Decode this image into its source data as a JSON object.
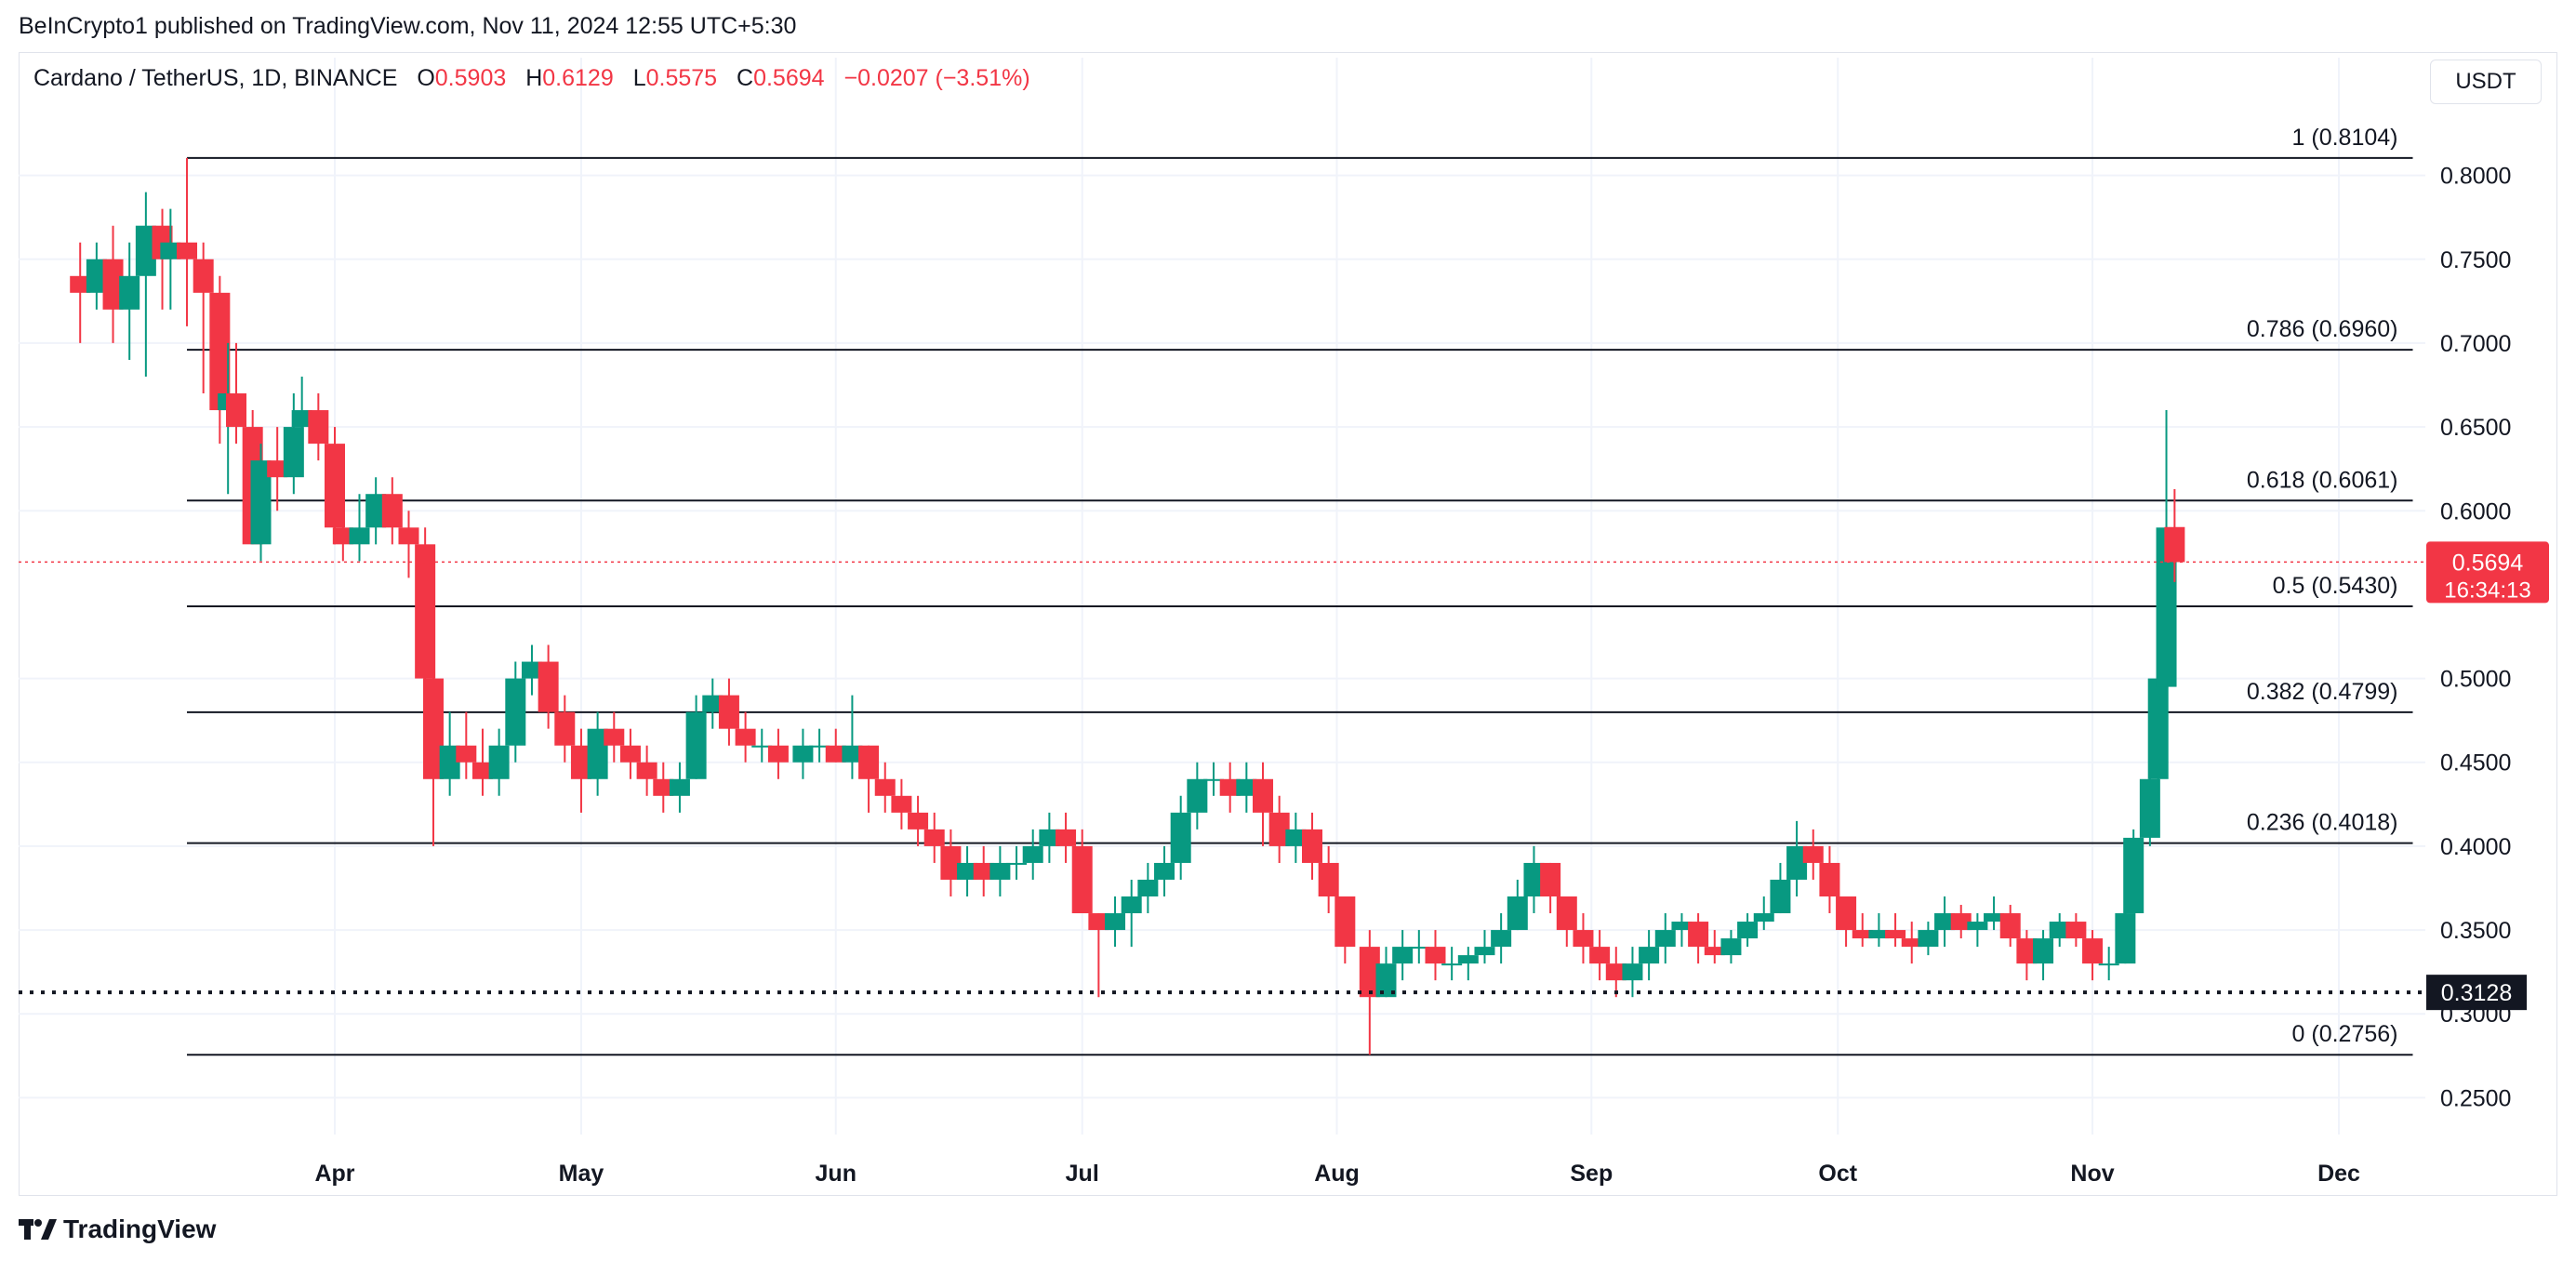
{
  "header": {
    "published": "BeInCrypto1 published on TradingView.com, Nov 11, 2024 12:55 UTC+5:30"
  },
  "legend": {
    "symbol": "Cardano / TetherUS, 1D, BINANCE",
    "open_label": "O",
    "open": "0.5903",
    "high_label": "H",
    "high": "0.6129",
    "low_label": "L",
    "low": "0.5575",
    "close_label": "C",
    "close": "0.5694",
    "change": "−0.0207 (−3.51%)"
  },
  "currency_button": "USDT",
  "footer": {
    "brand": "TradingView"
  },
  "colors": {
    "up": "#089981",
    "down": "#f23645",
    "grid": "#f0f3fa",
    "fib": "#131722"
  },
  "chart_data": {
    "type": "candlestick",
    "title": "Cardano / TetherUS, 1D, BINANCE",
    "ylim": [
      0.2,
      0.84
    ],
    "grid": true,
    "yticks": [
      "0.8000",
      "0.7500",
      "0.7000",
      "0.6500",
      "0.6000",
      "0.5000",
      "0.4500",
      "0.4000",
      "0.3500",
      "0.3000",
      "0.2500"
    ],
    "xticks": [
      "Apr",
      "May",
      "Jun",
      "Jul",
      "Aug",
      "Sep",
      "Oct",
      "Nov",
      "Dec"
    ],
    "xtick_dates": [
      "2024-04-01",
      "2024-05-01",
      "2024-06-01",
      "2024-07-01",
      "2024-08-01",
      "2024-09-01",
      "2024-10-01",
      "2024-11-01",
      "2024-12-01"
    ],
    "x_range": [
      "2024-02-28",
      "2024-12-12"
    ],
    "fib_start": "2024-03-14",
    "fib_end": "2024-12-10",
    "fib_levels": [
      {
        "label": "1 (0.8104)",
        "value": 0.8104
      },
      {
        "label": "0.786 (0.6960)",
        "value": 0.696
      },
      {
        "label": "0.618 (0.6061)",
        "value": 0.6061
      },
      {
        "label": "0.5 (0.5430)",
        "value": 0.543
      },
      {
        "label": "0.382 (0.4799)",
        "value": 0.4799
      },
      {
        "label": "0.236 (0.4018)",
        "value": 0.4018
      },
      {
        "label": "0 (0.2756)",
        "value": 0.2756
      }
    ],
    "support": {
      "value": 0.3128,
      "label": "0.3128"
    },
    "last_price": {
      "value": 0.5694,
      "label": "0.5694",
      "countdown": "16:34:13"
    },
    "series": [
      {
        "date": "2024-03-01",
        "o": 0.74,
        "h": 0.76,
        "l": 0.7,
        "c": 0.73
      },
      {
        "date": "2024-03-03",
        "o": 0.73,
        "h": 0.76,
        "l": 0.72,
        "c": 0.75
      },
      {
        "date": "2024-03-05",
        "o": 0.75,
        "h": 0.77,
        "l": 0.7,
        "c": 0.72
      },
      {
        "date": "2024-03-07",
        "o": 0.72,
        "h": 0.76,
        "l": 0.69,
        "c": 0.74
      },
      {
        "date": "2024-03-09",
        "o": 0.74,
        "h": 0.79,
        "l": 0.68,
        "c": 0.77
      },
      {
        "date": "2024-03-11",
        "o": 0.77,
        "h": 0.78,
        "l": 0.72,
        "c": 0.75
      },
      {
        "date": "2024-03-12",
        "o": 0.75,
        "h": 0.78,
        "l": 0.72,
        "c": 0.76
      },
      {
        "date": "2024-03-14",
        "o": 0.76,
        "h": 0.8104,
        "l": 0.71,
        "c": 0.75
      },
      {
        "date": "2024-03-16",
        "o": 0.75,
        "h": 0.76,
        "l": 0.67,
        "c": 0.73
      },
      {
        "date": "2024-03-18",
        "o": 0.73,
        "h": 0.74,
        "l": 0.64,
        "c": 0.66
      },
      {
        "date": "2024-03-19",
        "o": 0.66,
        "h": 0.7,
        "l": 0.61,
        "c": 0.67
      },
      {
        "date": "2024-03-20",
        "o": 0.67,
        "h": 0.7,
        "l": 0.64,
        "c": 0.65
      },
      {
        "date": "2024-03-22",
        "o": 0.65,
        "h": 0.66,
        "l": 0.58,
        "c": 0.58
      },
      {
        "date": "2024-03-23",
        "o": 0.58,
        "h": 0.64,
        "l": 0.57,
        "c": 0.63
      },
      {
        "date": "2024-03-25",
        "o": 0.63,
        "h": 0.65,
        "l": 0.6,
        "c": 0.62
      },
      {
        "date": "2024-03-27",
        "o": 0.62,
        "h": 0.67,
        "l": 0.61,
        "c": 0.65
      },
      {
        "date": "2024-03-28",
        "o": 0.65,
        "h": 0.68,
        "l": 0.63,
        "c": 0.66
      },
      {
        "date": "2024-03-30",
        "o": 0.66,
        "h": 0.67,
        "l": 0.63,
        "c": 0.64
      },
      {
        "date": "2024-04-01",
        "o": 0.64,
        "h": 0.65,
        "l": 0.58,
        "c": 0.59
      },
      {
        "date": "2024-04-02",
        "o": 0.59,
        "h": 0.6,
        "l": 0.57,
        "c": 0.58
      },
      {
        "date": "2024-04-04",
        "o": 0.58,
        "h": 0.61,
        "l": 0.57,
        "c": 0.59
      },
      {
        "date": "2024-04-06",
        "o": 0.59,
        "h": 0.62,
        "l": 0.58,
        "c": 0.61
      },
      {
        "date": "2024-04-08",
        "o": 0.61,
        "h": 0.62,
        "l": 0.58,
        "c": 0.59
      },
      {
        "date": "2024-04-10",
        "o": 0.59,
        "h": 0.6,
        "l": 0.56,
        "c": 0.58
      },
      {
        "date": "2024-04-12",
        "o": 0.58,
        "h": 0.59,
        "l": 0.45,
        "c": 0.5
      },
      {
        "date": "2024-04-13",
        "o": 0.5,
        "h": 0.51,
        "l": 0.4,
        "c": 0.44
      },
      {
        "date": "2024-04-15",
        "o": 0.44,
        "h": 0.48,
        "l": 0.43,
        "c": 0.46
      },
      {
        "date": "2024-04-17",
        "o": 0.46,
        "h": 0.48,
        "l": 0.44,
        "c": 0.45
      },
      {
        "date": "2024-04-19",
        "o": 0.45,
        "h": 0.47,
        "l": 0.43,
        "c": 0.44
      },
      {
        "date": "2024-04-21",
        "o": 0.44,
        "h": 0.47,
        "l": 0.43,
        "c": 0.46
      },
      {
        "date": "2024-04-23",
        "o": 0.46,
        "h": 0.51,
        "l": 0.45,
        "c": 0.5
      },
      {
        "date": "2024-04-25",
        "o": 0.5,
        "h": 0.52,
        "l": 0.49,
        "c": 0.51
      },
      {
        "date": "2024-04-27",
        "o": 0.51,
        "h": 0.52,
        "l": 0.47,
        "c": 0.48
      },
      {
        "date": "2024-04-29",
        "o": 0.48,
        "h": 0.49,
        "l": 0.45,
        "c": 0.46
      },
      {
        "date": "2024-05-01",
        "o": 0.46,
        "h": 0.47,
        "l": 0.42,
        "c": 0.44
      },
      {
        "date": "2024-05-03",
        "o": 0.44,
        "h": 0.48,
        "l": 0.43,
        "c": 0.47
      },
      {
        "date": "2024-05-05",
        "o": 0.47,
        "h": 0.48,
        "l": 0.45,
        "c": 0.46
      },
      {
        "date": "2024-05-07",
        "o": 0.46,
        "h": 0.47,
        "l": 0.44,
        "c": 0.45
      },
      {
        "date": "2024-05-09",
        "o": 0.45,
        "h": 0.46,
        "l": 0.43,
        "c": 0.44
      },
      {
        "date": "2024-05-11",
        "o": 0.44,
        "h": 0.45,
        "l": 0.42,
        "c": 0.43
      },
      {
        "date": "2024-05-13",
        "o": 0.43,
        "h": 0.45,
        "l": 0.42,
        "c": 0.44
      },
      {
        "date": "2024-05-15",
        "o": 0.44,
        "h": 0.49,
        "l": 0.44,
        "c": 0.48
      },
      {
        "date": "2024-05-17",
        "o": 0.48,
        "h": 0.5,
        "l": 0.47,
        "c": 0.49
      },
      {
        "date": "2024-05-19",
        "o": 0.49,
        "h": 0.5,
        "l": 0.46,
        "c": 0.47
      },
      {
        "date": "2024-05-21",
        "o": 0.47,
        "h": 0.48,
        "l": 0.45,
        "c": 0.46
      },
      {
        "date": "2024-05-23",
        "o": 0.46,
        "h": 0.47,
        "l": 0.45,
        "c": 0.46
      },
      {
        "date": "2024-05-25",
        "o": 0.46,
        "h": 0.47,
        "l": 0.44,
        "c": 0.45
      },
      {
        "date": "2024-05-28",
        "o": 0.45,
        "h": 0.47,
        "l": 0.44,
        "c": 0.46
      },
      {
        "date": "2024-05-30",
        "o": 0.46,
        "h": 0.47,
        "l": 0.45,
        "c": 0.46
      },
      {
        "date": "2024-06-01",
        "o": 0.46,
        "h": 0.47,
        "l": 0.45,
        "c": 0.45
      },
      {
        "date": "2024-06-03",
        "o": 0.45,
        "h": 0.49,
        "l": 0.44,
        "c": 0.46
      },
      {
        "date": "2024-06-05",
        "o": 0.46,
        "h": 0.46,
        "l": 0.42,
        "c": 0.44
      },
      {
        "date": "2024-06-07",
        "o": 0.44,
        "h": 0.45,
        "l": 0.42,
        "c": 0.43
      },
      {
        "date": "2024-06-09",
        "o": 0.43,
        "h": 0.44,
        "l": 0.41,
        "c": 0.42
      },
      {
        "date": "2024-06-11",
        "o": 0.42,
        "h": 0.43,
        "l": 0.4,
        "c": 0.41
      },
      {
        "date": "2024-06-13",
        "o": 0.41,
        "h": 0.42,
        "l": 0.39,
        "c": 0.4
      },
      {
        "date": "2024-06-15",
        "o": 0.4,
        "h": 0.41,
        "l": 0.37,
        "c": 0.38
      },
      {
        "date": "2024-06-17",
        "o": 0.38,
        "h": 0.4,
        "l": 0.37,
        "c": 0.39
      },
      {
        "date": "2024-06-19",
        "o": 0.39,
        "h": 0.4,
        "l": 0.37,
        "c": 0.38
      },
      {
        "date": "2024-06-21",
        "o": 0.38,
        "h": 0.4,
        "l": 0.37,
        "c": 0.39
      },
      {
        "date": "2024-06-23",
        "o": 0.39,
        "h": 0.4,
        "l": 0.38,
        "c": 0.39
      },
      {
        "date": "2024-06-25",
        "o": 0.39,
        "h": 0.41,
        "l": 0.38,
        "c": 0.4
      },
      {
        "date": "2024-06-27",
        "o": 0.4,
        "h": 0.42,
        "l": 0.39,
        "c": 0.41
      },
      {
        "date": "2024-06-29",
        "o": 0.41,
        "h": 0.42,
        "l": 0.39,
        "c": 0.4
      },
      {
        "date": "2024-07-01",
        "o": 0.4,
        "h": 0.41,
        "l": 0.36,
        "c": 0.36
      },
      {
        "date": "2024-07-03",
        "o": 0.36,
        "h": 0.36,
        "l": 0.31,
        "c": 0.35
      },
      {
        "date": "2024-07-05",
        "o": 0.35,
        "h": 0.37,
        "l": 0.34,
        "c": 0.36
      },
      {
        "date": "2024-07-07",
        "o": 0.36,
        "h": 0.38,
        "l": 0.34,
        "c": 0.37
      },
      {
        "date": "2024-07-09",
        "o": 0.37,
        "h": 0.39,
        "l": 0.36,
        "c": 0.38
      },
      {
        "date": "2024-07-11",
        "o": 0.38,
        "h": 0.4,
        "l": 0.37,
        "c": 0.39
      },
      {
        "date": "2024-07-13",
        "o": 0.39,
        "h": 0.43,
        "l": 0.38,
        "c": 0.42
      },
      {
        "date": "2024-07-15",
        "o": 0.42,
        "h": 0.45,
        "l": 0.41,
        "c": 0.44
      },
      {
        "date": "2024-07-17",
        "o": 0.44,
        "h": 0.45,
        "l": 0.43,
        "c": 0.44
      },
      {
        "date": "2024-07-19",
        "o": 0.44,
        "h": 0.45,
        "l": 0.42,
        "c": 0.43
      },
      {
        "date": "2024-07-21",
        "o": 0.43,
        "h": 0.45,
        "l": 0.42,
        "c": 0.44
      },
      {
        "date": "2024-07-23",
        "o": 0.44,
        "h": 0.45,
        "l": 0.4,
        "c": 0.42
      },
      {
        "date": "2024-07-25",
        "o": 0.42,
        "h": 0.43,
        "l": 0.39,
        "c": 0.4
      },
      {
        "date": "2024-07-27",
        "o": 0.4,
        "h": 0.42,
        "l": 0.39,
        "c": 0.41
      },
      {
        "date": "2024-07-29",
        "o": 0.41,
        "h": 0.42,
        "l": 0.38,
        "c": 0.39
      },
      {
        "date": "2024-07-31",
        "o": 0.39,
        "h": 0.4,
        "l": 0.36,
        "c": 0.37
      },
      {
        "date": "2024-08-02",
        "o": 0.37,
        "h": 0.37,
        "l": 0.33,
        "c": 0.34
      },
      {
        "date": "2024-08-05",
        "o": 0.34,
        "h": 0.35,
        "l": 0.2756,
        "c": 0.31
      },
      {
        "date": "2024-08-07",
        "o": 0.31,
        "h": 0.34,
        "l": 0.31,
        "c": 0.33
      },
      {
        "date": "2024-08-09",
        "o": 0.33,
        "h": 0.35,
        "l": 0.32,
        "c": 0.34
      },
      {
        "date": "2024-08-11",
        "o": 0.34,
        "h": 0.35,
        "l": 0.33,
        "c": 0.34
      },
      {
        "date": "2024-08-13",
        "o": 0.34,
        "h": 0.35,
        "l": 0.32,
        "c": 0.33
      },
      {
        "date": "2024-08-15",
        "o": 0.33,
        "h": 0.34,
        "l": 0.32,
        "c": 0.33
      },
      {
        "date": "2024-08-17",
        "o": 0.33,
        "h": 0.34,
        "l": 0.32,
        "c": 0.335
      },
      {
        "date": "2024-08-19",
        "o": 0.335,
        "h": 0.35,
        "l": 0.33,
        "c": 0.34
      },
      {
        "date": "2024-08-21",
        "o": 0.34,
        "h": 0.36,
        "l": 0.33,
        "c": 0.35
      },
      {
        "date": "2024-08-23",
        "o": 0.35,
        "h": 0.38,
        "l": 0.35,
        "c": 0.37
      },
      {
        "date": "2024-08-25",
        "o": 0.37,
        "h": 0.4,
        "l": 0.36,
        "c": 0.39
      },
      {
        "date": "2024-08-27",
        "o": 0.39,
        "h": 0.39,
        "l": 0.36,
        "c": 0.37
      },
      {
        "date": "2024-08-29",
        "o": 0.37,
        "h": 0.37,
        "l": 0.34,
        "c": 0.35
      },
      {
        "date": "2024-08-31",
        "o": 0.35,
        "h": 0.36,
        "l": 0.33,
        "c": 0.34
      },
      {
        "date": "2024-09-02",
        "o": 0.34,
        "h": 0.35,
        "l": 0.32,
        "c": 0.33
      },
      {
        "date": "2024-09-04",
        "o": 0.33,
        "h": 0.34,
        "l": 0.31,
        "c": 0.32
      },
      {
        "date": "2024-09-06",
        "o": 0.32,
        "h": 0.34,
        "l": 0.31,
        "c": 0.33
      },
      {
        "date": "2024-09-08",
        "o": 0.33,
        "h": 0.35,
        "l": 0.32,
        "c": 0.34
      },
      {
        "date": "2024-09-10",
        "o": 0.34,
        "h": 0.36,
        "l": 0.33,
        "c": 0.35
      },
      {
        "date": "2024-09-12",
        "o": 0.35,
        "h": 0.36,
        "l": 0.34,
        "c": 0.355
      },
      {
        "date": "2024-09-14",
        "o": 0.355,
        "h": 0.36,
        "l": 0.33,
        "c": 0.34
      },
      {
        "date": "2024-09-16",
        "o": 0.34,
        "h": 0.35,
        "l": 0.33,
        "c": 0.335
      },
      {
        "date": "2024-09-18",
        "o": 0.335,
        "h": 0.35,
        "l": 0.33,
        "c": 0.345
      },
      {
        "date": "2024-09-20",
        "o": 0.345,
        "h": 0.36,
        "l": 0.34,
        "c": 0.355
      },
      {
        "date": "2024-09-22",
        "o": 0.355,
        "h": 0.37,
        "l": 0.35,
        "c": 0.36
      },
      {
        "date": "2024-09-24",
        "o": 0.36,
        "h": 0.39,
        "l": 0.36,
        "c": 0.38
      },
      {
        "date": "2024-09-26",
        "o": 0.38,
        "h": 0.415,
        "l": 0.37,
        "c": 0.4
      },
      {
        "date": "2024-09-28",
        "o": 0.4,
        "h": 0.41,
        "l": 0.38,
        "c": 0.39
      },
      {
        "date": "2024-09-30",
        "o": 0.39,
        "h": 0.4,
        "l": 0.36,
        "c": 0.37
      },
      {
        "date": "2024-10-02",
        "o": 0.37,
        "h": 0.37,
        "l": 0.34,
        "c": 0.35
      },
      {
        "date": "2024-10-04",
        "o": 0.35,
        "h": 0.36,
        "l": 0.34,
        "c": 0.345
      },
      {
        "date": "2024-10-06",
        "o": 0.345,
        "h": 0.36,
        "l": 0.34,
        "c": 0.35
      },
      {
        "date": "2024-10-08",
        "o": 0.35,
        "h": 0.36,
        "l": 0.34,
        "c": 0.345
      },
      {
        "date": "2024-10-10",
        "o": 0.345,
        "h": 0.355,
        "l": 0.33,
        "c": 0.34
      },
      {
        "date": "2024-10-12",
        "o": 0.34,
        "h": 0.355,
        "l": 0.335,
        "c": 0.35
      },
      {
        "date": "2024-10-14",
        "o": 0.35,
        "h": 0.37,
        "l": 0.34,
        "c": 0.36
      },
      {
        "date": "2024-10-16",
        "o": 0.36,
        "h": 0.365,
        "l": 0.345,
        "c": 0.35
      },
      {
        "date": "2024-10-18",
        "o": 0.35,
        "h": 0.36,
        "l": 0.34,
        "c": 0.355
      },
      {
        "date": "2024-10-20",
        "o": 0.355,
        "h": 0.37,
        "l": 0.35,
        "c": 0.36
      },
      {
        "date": "2024-10-22",
        "o": 0.36,
        "h": 0.365,
        "l": 0.34,
        "c": 0.345
      },
      {
        "date": "2024-10-24",
        "o": 0.345,
        "h": 0.35,
        "l": 0.32,
        "c": 0.33
      },
      {
        "date": "2024-10-26",
        "o": 0.33,
        "h": 0.35,
        "l": 0.32,
        "c": 0.345
      },
      {
        "date": "2024-10-28",
        "o": 0.345,
        "h": 0.36,
        "l": 0.34,
        "c": 0.355
      },
      {
        "date": "2024-10-30",
        "o": 0.355,
        "h": 0.36,
        "l": 0.34,
        "c": 0.345
      },
      {
        "date": "2024-11-01",
        "o": 0.345,
        "h": 0.35,
        "l": 0.32,
        "c": 0.33
      },
      {
        "date": "2024-11-03",
        "o": 0.33,
        "h": 0.34,
        "l": 0.32,
        "c": 0.33
      },
      {
        "date": "2024-11-05",
        "o": 0.33,
        "h": 0.37,
        "l": 0.33,
        "c": 0.36
      },
      {
        "date": "2024-11-06",
        "o": 0.36,
        "h": 0.41,
        "l": 0.36,
        "c": 0.405
      },
      {
        "date": "2024-11-08",
        "o": 0.405,
        "h": 0.46,
        "l": 0.4,
        "c": 0.44
      },
      {
        "date": "2024-11-09",
        "o": 0.44,
        "h": 0.5,
        "l": 0.43,
        "c": 0.5
      },
      {
        "date": "2024-11-10",
        "o": 0.495,
        "h": 0.66,
        "l": 0.49,
        "c": 0.59
      },
      {
        "date": "2024-11-11",
        "o": 0.5903,
        "h": 0.6129,
        "l": 0.5575,
        "c": 0.5694
      }
    ]
  }
}
